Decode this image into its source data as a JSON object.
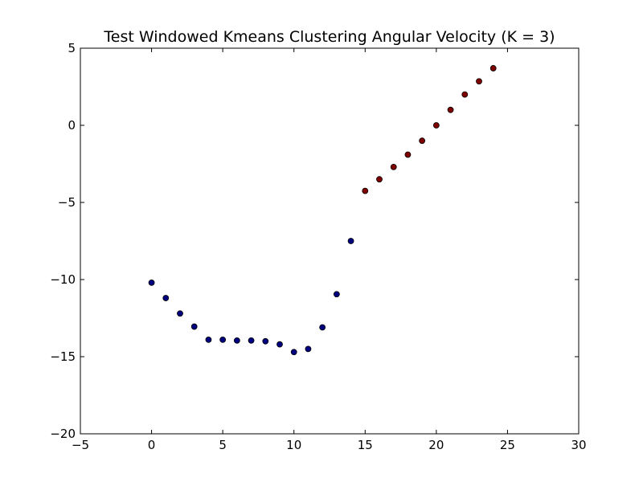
{
  "chart_data": {
    "type": "scatter",
    "title": "Test Windowed Kmeans Clustering Angular Velocity (K = 3)",
    "xlabel": "",
    "ylabel": "",
    "xlim": [
      -5,
      30
    ],
    "ylim": [
      -20,
      5
    ],
    "x_ticks": [
      -5,
      0,
      5,
      10,
      15,
      20,
      25,
      30
    ],
    "y_ticks": [
      -20,
      -15,
      -10,
      -5,
      0,
      5
    ],
    "x_tick_labels": [
      "−5",
      "0",
      "5",
      "10",
      "15",
      "20",
      "25",
      "30"
    ],
    "y_tick_labels": [
      "−20",
      "−15",
      "−10",
      "−5",
      "0",
      "5"
    ],
    "grid": false,
    "legend": "none",
    "series": [
      {
        "color": "#00007f",
        "x": [
          0,
          1,
          2,
          3,
          4,
          5,
          6,
          7,
          8,
          9,
          10,
          11,
          12,
          13,
          14
        ],
        "y": [
          -10.2,
          -11.2,
          -12.2,
          -13.05,
          -13.9,
          -13.9,
          -13.95,
          -13.95,
          -14.0,
          -14.2,
          -14.7,
          -14.5,
          -13.1,
          -10.95,
          -7.5
        ]
      },
      {
        "color": "#7f0000",
        "x": [
          15,
          16,
          17,
          18,
          19,
          20,
          21,
          22,
          23,
          24
        ],
        "y": [
          -4.25,
          -3.5,
          -2.7,
          -1.9,
          -1.0,
          0.0,
          1.0,
          2.0,
          2.85,
          3.7
        ]
      }
    ]
  }
}
